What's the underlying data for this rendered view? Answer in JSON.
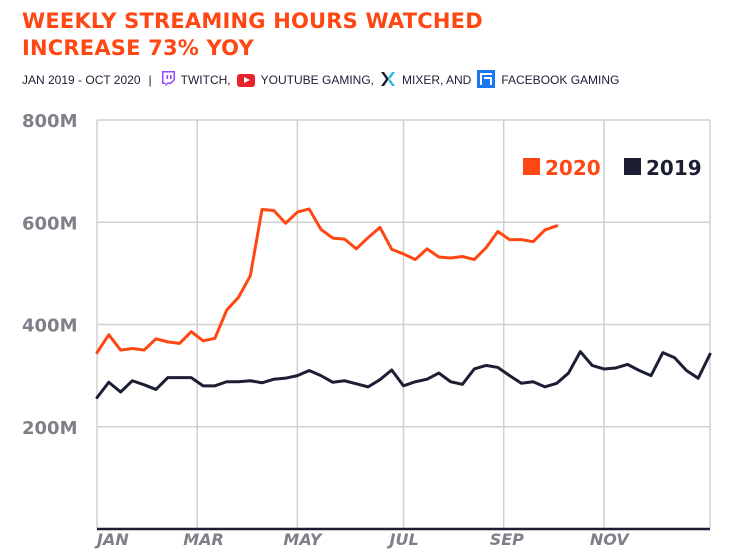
{
  "title_line1": "WEEKLY STREAMING HOURS WATCHED",
  "title_line2": "INCREASE 73% YOY",
  "subtitle": {
    "date_range": "JAN 2019  - OCT 2020",
    "separator": "|",
    "platforms": [
      {
        "label": "TWITCH,",
        "icon": "twitch-icon",
        "color": "#9146ff"
      },
      {
        "label": "YOUTUBE GAMING,",
        "icon": "youtube-icon",
        "color": "#e8232b"
      },
      {
        "label": "MIXER, AND",
        "icon": "mixer-icon",
        "color": "#1c1f33"
      },
      {
        "label": "FACEBOOK GAMING",
        "icon": "facebook-gaming-icon",
        "color": "#1877f2"
      }
    ]
  },
  "colors": {
    "series_2020": "#ff4713",
    "series_2019": "#1c1f33",
    "grid": "#d0d0d0",
    "axis": "#1c1f33"
  },
  "chart_data": {
    "type": "line",
    "x_unit": "week",
    "xlim": [
      0,
      52
    ],
    "x_ticks": [
      {
        "week": 0,
        "label": "JAN"
      },
      {
        "week": 8.5,
        "label": "MAR"
      },
      {
        "week": 17,
        "label": "MAY"
      },
      {
        "week": 26,
        "label": "JUL"
      },
      {
        "week": 34.5,
        "label": "SEP"
      },
      {
        "week": 43,
        "label": "NOV"
      }
    ],
    "ylim": [
      0,
      800
    ],
    "y_ticks": [
      {
        "value": 200,
        "label": "200M"
      },
      {
        "value": 400,
        "label": "400M"
      },
      {
        "value": 600,
        "label": "600M"
      },
      {
        "value": 800,
        "label": "800M"
      }
    ],
    "y_unit": "M hours",
    "grid": true,
    "legend": "top-right",
    "series": [
      {
        "name": "2020",
        "values": [
          345,
          380,
          350,
          353,
          350,
          372,
          366,
          363,
          386,
          368,
          373,
          428,
          453,
          495,
          625,
          623,
          598,
          620,
          626,
          586,
          569,
          567,
          548,
          570,
          590,
          547,
          538,
          527,
          548,
          532,
          530,
          533,
          527,
          550,
          582,
          566,
          566,
          562,
          585,
          593
        ]
      },
      {
        "name": "2019",
        "values": [
          257,
          287,
          268,
          290,
          282,
          273,
          296,
          296,
          296,
          280,
          280,
          288,
          288,
          290,
          286,
          293,
          295,
          300,
          310,
          300,
          287,
          290,
          284,
          278,
          292,
          311,
          280,
          288,
          293,
          305,
          288,
          283,
          313,
          320,
          316,
          300,
          285,
          288,
          278,
          285,
          305,
          347,
          320,
          313,
          315,
          322,
          310,
          300,
          345,
          335,
          310,
          295,
          342
        ]
      }
    ]
  }
}
